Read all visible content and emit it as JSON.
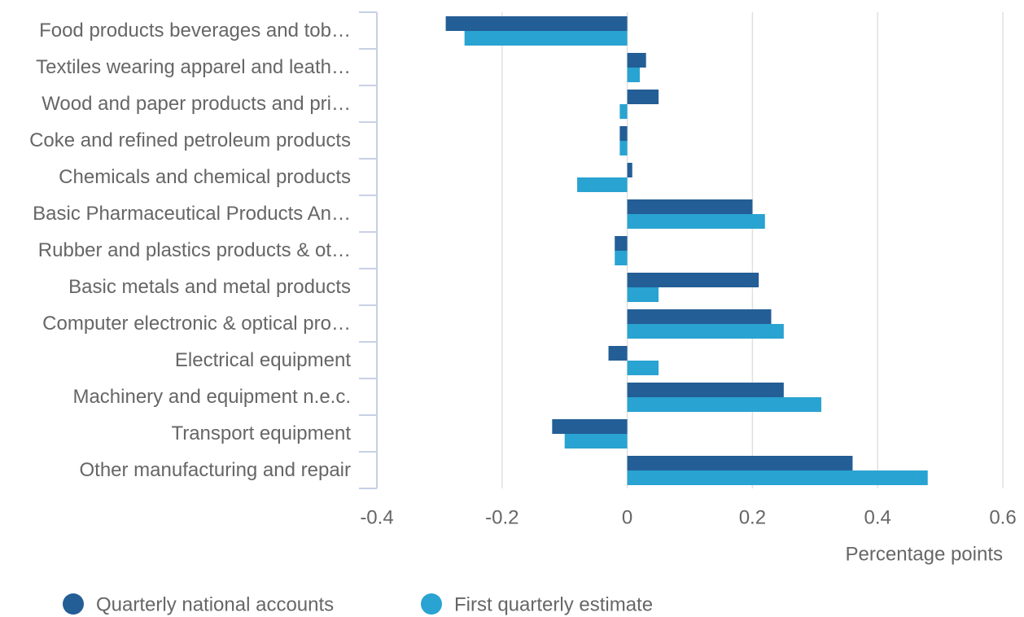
{
  "chart_data": {
    "type": "hbar",
    "categories": [
      "Food products beverages and tob…",
      "Textiles wearing apparel and leath…",
      "Wood and paper products and pri…",
      "Coke and refined petroleum products",
      "Chemicals and chemical products",
      "Basic Pharmaceutical Products An…",
      "Rubber and plastics products & ot…",
      "Basic metals and metal products",
      "Computer electronic & optical pro…",
      "Electrical equipment",
      "Machinery and equipment n.e.c.",
      "Transport equipment",
      "Other manufacturing and repair"
    ],
    "series": [
      {
        "name": "Quarterly national accounts",
        "color": "#235e96",
        "values": [
          -0.29,
          0.03,
          0.05,
          -0.012,
          0.008,
          0.2,
          -0.02,
          0.21,
          0.23,
          -0.03,
          0.25,
          -0.12,
          0.36
        ]
      },
      {
        "name": "First quarterly estimate",
        "color": "#29a3d1",
        "values": [
          -0.26,
          0.02,
          -0.012,
          -0.012,
          -0.08,
          0.22,
          -0.02,
          0.05,
          0.25,
          0.05,
          0.31,
          -0.1,
          0.48
        ]
      }
    ],
    "xlabel": "Percentage points",
    "xlim": [
      -0.4,
      0.6
    ],
    "xticks": [
      -0.4,
      -0.2,
      0,
      0.2,
      0.4,
      0.6
    ],
    "grid": true
  }
}
